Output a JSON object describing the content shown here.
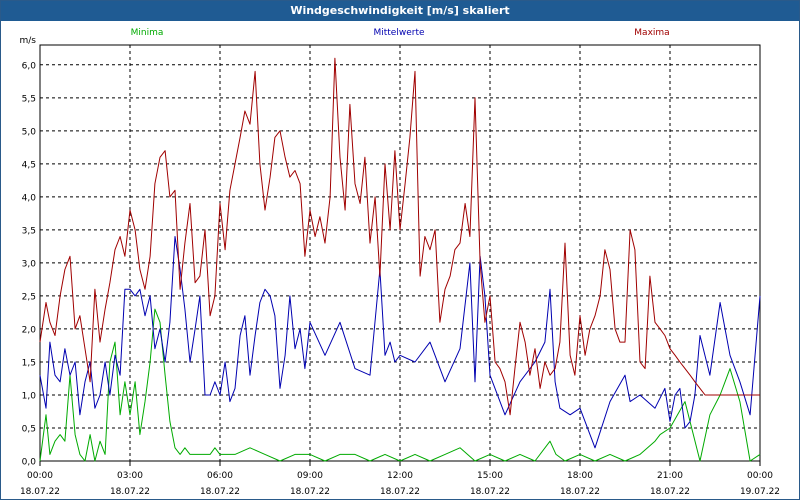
{
  "window": {
    "title": "Windgeschwindigkeit [m/s] skaliert"
  },
  "colors": {
    "minima": "#00aa00",
    "mittelwerte": "#0000b0",
    "maxima": "#a00000",
    "grid": "#000000"
  },
  "chart_data": {
    "type": "line",
    "title": "Windgeschwindigkeit [m/s] skaliert",
    "ylabel": "m/s",
    "ylim": [
      0,
      6.3
    ],
    "yticks": [
      "0,0",
      "0,5",
      "1,0",
      "1,5",
      "2,0",
      "2,5",
      "3,0",
      "3,5",
      "4,0",
      "4,5",
      "5,0",
      "5,5",
      "6,0"
    ],
    "xticks": [
      {
        "time": "00:00",
        "date": "18.07.22"
      },
      {
        "time": "03:00",
        "date": "18.07.22"
      },
      {
        "time": "06:00",
        "date": "18.07.22"
      },
      {
        "time": "09:00",
        "date": "18.07.22"
      },
      {
        "time": "12:00",
        "date": "18.07.22"
      },
      {
        "time": "15:00",
        "date": "18.07.22"
      },
      {
        "time": "18:00",
        "date": "18.07.22"
      },
      {
        "time": "21:00",
        "date": "18.07.22"
      },
      {
        "time": "00:00",
        "date": "19.07.22"
      }
    ],
    "grid": true,
    "legend": "top",
    "series": [
      {
        "name": "Minima",
        "x": [
          0,
          0.2,
          0.33,
          0.5,
          0.67,
          0.83,
          1.0,
          1.17,
          1.33,
          1.5,
          1.67,
          1.83,
          2.0,
          2.17,
          2.33,
          2.5,
          2.67,
          2.83,
          3.0,
          3.17,
          3.33,
          3.5,
          3.67,
          3.83,
          4.0,
          4.17,
          4.33,
          4.5,
          4.67,
          4.83,
          5.0,
          5.17,
          5.33,
          5.5,
          5.67,
          5.83,
          6.0,
          6.5,
          7.0,
          7.5,
          8.0,
          8.5,
          9.0,
          9.5,
          10.0,
          10.5,
          11.0,
          11.5,
          12.0,
          12.5,
          13.0,
          13.5,
          14.0,
          14.5,
          15.0,
          15.5,
          16.0,
          16.5,
          17.0,
          17.2,
          17.5,
          18.0,
          18.5,
          19.0,
          19.5,
          20.0,
          20.5,
          20.67,
          21.0,
          21.5,
          22.0,
          22.33,
          22.67,
          23.0,
          23.33,
          23.67,
          24.0
        ],
        "values": [
          0.0,
          0.7,
          0.1,
          0.3,
          0.4,
          0.3,
          1.3,
          0.4,
          0.1,
          0.0,
          0.4,
          0.0,
          0.3,
          0.1,
          1.5,
          1.8,
          0.7,
          1.2,
          0.7,
          1.2,
          0.4,
          0.9,
          1.5,
          2.3,
          2.1,
          1.3,
          0.6,
          0.2,
          0.1,
          0.2,
          0.1,
          0.1,
          0.1,
          0.1,
          0.1,
          0.2,
          0.1,
          0.1,
          0.2,
          0.1,
          0.0,
          0.1,
          0.1,
          0.0,
          0.1,
          0.1,
          0.0,
          0.1,
          0.0,
          0.1,
          0.0,
          0.1,
          0.2,
          0.0,
          0.1,
          0.0,
          0.1,
          0.0,
          0.3,
          0.1,
          0.0,
          0.1,
          0.0,
          0.1,
          0.0,
          0.1,
          0.3,
          0.4,
          0.5,
          0.9,
          0.0,
          0.7,
          1.0,
          1.4,
          0.9,
          0.0,
          0.1
        ]
      },
      {
        "name": "Mittelwerte",
        "x": [
          0,
          0.2,
          0.33,
          0.5,
          0.67,
          0.83,
          1.0,
          1.17,
          1.33,
          1.5,
          1.67,
          1.83,
          2.0,
          2.17,
          2.33,
          2.5,
          2.67,
          2.83,
          3.0,
          3.17,
          3.33,
          3.5,
          3.67,
          3.83,
          4.0,
          4.17,
          4.33,
          4.5,
          4.67,
          4.83,
          5.0,
          5.17,
          5.33,
          5.5,
          5.67,
          5.83,
          6.0,
          6.17,
          6.33,
          6.5,
          6.67,
          6.83,
          7.0,
          7.17,
          7.33,
          7.5,
          7.67,
          7.83,
          8.0,
          8.17,
          8.33,
          8.5,
          8.67,
          8.83,
          9.0,
          9.5,
          10.0,
          10.5,
          11.0,
          11.33,
          11.5,
          11.67,
          11.83,
          12.0,
          12.5,
          13.0,
          13.5,
          14.0,
          14.33,
          14.5,
          14.67,
          14.83,
          15.0,
          15.5,
          16.0,
          16.5,
          16.83,
          17.0,
          17.17,
          17.33,
          17.67,
          18.0,
          18.5,
          19.0,
          19.5,
          19.67,
          20.0,
          20.5,
          20.83,
          21.0,
          21.17,
          21.33,
          21.5,
          21.67,
          21.83,
          22.0,
          22.33,
          22.67,
          23.0,
          23.33,
          23.67,
          24.0
        ],
        "values": [
          1.3,
          0.8,
          1.8,
          1.3,
          1.2,
          1.7,
          1.3,
          1.5,
          0.7,
          1.2,
          1.5,
          0.8,
          1.0,
          1.5,
          1.0,
          1.6,
          1.3,
          2.6,
          2.6,
          2.5,
          2.6,
          2.2,
          2.5,
          1.7,
          2.0,
          1.5,
          2.1,
          3.4,
          2.9,
          2.3,
          1.5,
          2.0,
          2.5,
          1.0,
          1.0,
          1.2,
          1.0,
          1.5,
          0.9,
          1.1,
          1.9,
          2.2,
          1.3,
          1.9,
          2.4,
          2.6,
          2.5,
          2.2,
          1.1,
          1.6,
          2.5,
          1.7,
          2.0,
          1.4,
          2.1,
          1.6,
          2.1,
          1.4,
          1.3,
          2.9,
          1.6,
          1.8,
          1.5,
          1.6,
          1.5,
          1.8,
          1.2,
          1.7,
          3.0,
          1.2,
          3.1,
          2.5,
          1.3,
          0.7,
          1.2,
          1.5,
          1.8,
          2.6,
          1.2,
          0.8,
          0.7,
          0.8,
          0.2,
          0.9,
          1.3,
          0.9,
          1.0,
          0.8,
          1.1,
          0.6,
          1.0,
          1.1,
          0.5,
          0.6,
          1.0,
          1.9,
          1.3,
          2.4,
          1.6,
          1.2,
          0.7,
          2.5
        ]
      },
      {
        "name": "Maxima",
        "x": [
          0,
          0.2,
          0.33,
          0.5,
          0.67,
          0.83,
          1.0,
          1.17,
          1.33,
          1.5,
          1.67,
          1.83,
          2.0,
          2.17,
          2.33,
          2.5,
          2.67,
          2.83,
          3.0,
          3.17,
          3.33,
          3.5,
          3.67,
          3.83,
          4.0,
          4.17,
          4.33,
          4.5,
          4.67,
          4.83,
          5.0,
          5.17,
          5.33,
          5.5,
          5.67,
          5.83,
          6.0,
          6.17,
          6.33,
          6.5,
          6.67,
          6.83,
          7.0,
          7.17,
          7.33,
          7.5,
          7.67,
          7.83,
          8.0,
          8.17,
          8.33,
          8.5,
          8.67,
          8.83,
          9.0,
          9.17,
          9.33,
          9.5,
          9.67,
          9.83,
          10.0,
          10.17,
          10.33,
          10.5,
          10.67,
          10.83,
          11.0,
          11.17,
          11.33,
          11.5,
          11.67,
          11.83,
          12.0,
          12.17,
          12.33,
          12.5,
          12.67,
          12.83,
          13.0,
          13.17,
          13.33,
          13.5,
          13.67,
          13.83,
          14.0,
          14.17,
          14.33,
          14.5,
          14.67,
          14.83,
          15.0,
          15.17,
          15.33,
          15.5,
          15.67,
          15.83,
          16.0,
          16.17,
          16.33,
          16.5,
          16.67,
          16.83,
          17.0,
          17.17,
          17.33,
          17.5,
          17.67,
          17.83,
          18.0,
          18.17,
          18.33,
          18.5,
          18.67,
          18.83,
          19.0,
          19.17,
          19.33,
          19.5,
          19.67,
          19.83,
          20.0,
          20.17,
          20.33,
          20.5,
          20.67,
          20.83,
          21.0,
          21.17,
          21.33,
          21.5,
          21.67,
          21.83,
          22.0,
          22.17,
          22.33,
          22.5,
          22.67,
          22.83,
          23.0,
          23.17,
          23.33,
          23.5,
          23.67,
          23.83,
          24.0
        ],
        "values": [
          1.8,
          2.4,
          2.1,
          1.9,
          2.5,
          2.9,
          3.1,
          2.0,
          2.2,
          1.7,
          1.2,
          2.6,
          1.8,
          2.3,
          2.7,
          3.2,
          3.4,
          3.1,
          3.8,
          3.5,
          2.9,
          2.6,
          3.1,
          4.2,
          4.6,
          4.7,
          4.0,
          4.1,
          2.6,
          3.3,
          3.9,
          2.7,
          2.8,
          3.5,
          2.2,
          2.5,
          3.9,
          3.2,
          4.1,
          4.5,
          4.9,
          5.3,
          5.1,
          5.9,
          4.5,
          3.8,
          4.3,
          4.9,
          5.0,
          4.6,
          4.3,
          4.4,
          4.2,
          3.1,
          3.8,
          3.4,
          3.7,
          3.3,
          4.0,
          6.1,
          4.6,
          3.8,
          5.4,
          4.2,
          3.9,
          4.6,
          3.3,
          4.0,
          2.8,
          4.5,
          3.5,
          4.7,
          3.5,
          4.2,
          4.9,
          5.9,
          2.8,
          3.4,
          3.2,
          3.5,
          2.1,
          2.6,
          2.8,
          3.2,
          3.3,
          3.9,
          3.4,
          5.5,
          3.0,
          2.1,
          2.5,
          1.5,
          1.4,
          1.2,
          0.7,
          1.4,
          2.1,
          1.8,
          1.3,
          1.7,
          1.1,
          1.5,
          1.3,
          1.4,
          1.8,
          3.3,
          1.6,
          1.3,
          2.2,
          1.6,
          2.0,
          2.2,
          2.5,
          3.2,
          2.9,
          2.0,
          1.8,
          1.8,
          3.5,
          3.2,
          1.5,
          1.4,
          2.8,
          2.1,
          2.0,
          1.9,
          1.7,
          1.6,
          1.5,
          1.4,
          1.3,
          1.2,
          1.1,
          1.0,
          1.0,
          1.0,
          1.0,
          1.0,
          1.0,
          1.0,
          1.0,
          1.0,
          1.0,
          1.0,
          1.0
        ]
      }
    ]
  }
}
